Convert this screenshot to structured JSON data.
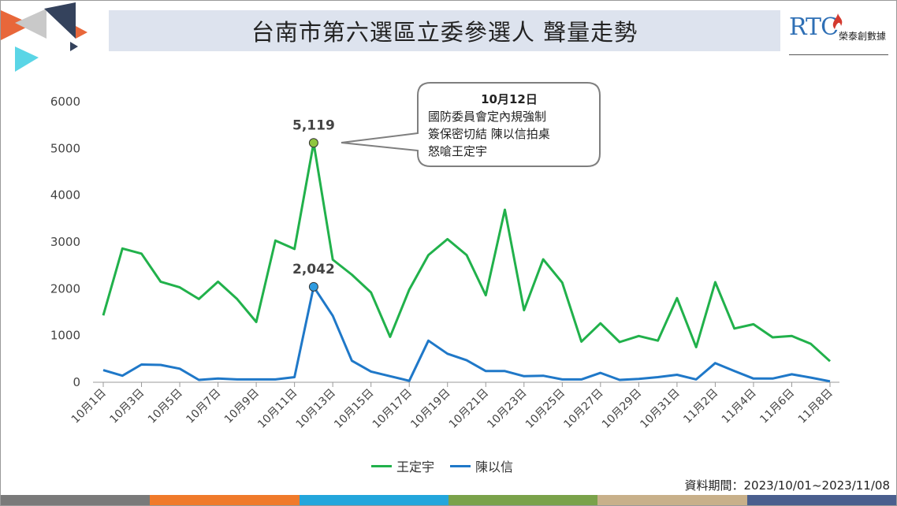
{
  "title": "台南市第六選區立委參選人 聲量走勢",
  "logo": {
    "mark": "RTC",
    "name": "榮泰創數據"
  },
  "date_range": "資料期間：2023/10/01~2023/11/08",
  "colors": {
    "series_green": "#21b14b",
    "series_blue": "#1f78c8",
    "bottom_bar": [
      "#7a7a7a",
      "#f07a2a",
      "#23a6dc",
      "#7aa24a",
      "#c8b08a",
      "#4a5f8e"
    ],
    "corner_orange": "#e8673a",
    "corner_navy": "#34425c",
    "corner_gray": "#c9c9c9",
    "corner_cyan": "#5ad5e6"
  },
  "chart_data": {
    "type": "line",
    "x": [
      "10月1日",
      "10月2日",
      "10月3日",
      "10月4日",
      "10月5日",
      "10月6日",
      "10月7日",
      "10月8日",
      "10月9日",
      "10月10日",
      "10月11日",
      "10月12日",
      "10月13日",
      "10月14日",
      "10月15日",
      "10月16日",
      "10月17日",
      "10月18日",
      "10月19日",
      "10月20日",
      "10月21日",
      "10月22日",
      "10月23日",
      "10月24日",
      "10月25日",
      "10月26日",
      "10月27日",
      "10月28日",
      "10月29日",
      "10月30日",
      "10月31日",
      "11月1日",
      "11月2日",
      "11月3日",
      "11月4日",
      "11月5日",
      "11月6日",
      "11月7日",
      "11月8日"
    ],
    "tick_labels": [
      "10月1日",
      "10月3日",
      "10月5日",
      "10月7日",
      "10月9日",
      "10月11日",
      "10月13日",
      "10月15日",
      "10月17日",
      "10月19日",
      "10月21日",
      "10月23日",
      "10月25日",
      "10月27日",
      "10月29日",
      "10月31日",
      "11月2日",
      "11月4日",
      "11月6日",
      "11月8日"
    ],
    "series": [
      {
        "name": "王定宇",
        "color": "#21b14b",
        "values": [
          1430,
          2860,
          2750,
          2150,
          2030,
          1780,
          2150,
          1780,
          1290,
          3030,
          2850,
          5119,
          2620,
          2300,
          1920,
          970,
          1980,
          2720,
          3060,
          2720,
          1860,
          3690,
          1540,
          2630,
          2130,
          870,
          1260,
          860,
          990,
          890,
          1800,
          750,
          2140,
          1150,
          1240,
          960,
          990,
          820,
          450
        ]
      },
      {
        "name": "陳以信",
        "color": "#1f78c8",
        "values": [
          260,
          140,
          380,
          370,
          290,
          50,
          80,
          60,
          60,
          60,
          110,
          2042,
          1420,
          460,
          230,
          130,
          30,
          890,
          610,
          470,
          240,
          240,
          130,
          140,
          60,
          60,
          200,
          50,
          70,
          110,
          160,
          60,
          410,
          240,
          80,
          80,
          170,
          100,
          20
        ]
      }
    ],
    "yticks": [
      0,
      1000,
      2000,
      3000,
      4000,
      5000,
      6000
    ],
    "ylim": [
      0,
      6000
    ],
    "grid": false,
    "data_labels": [
      {
        "series": 0,
        "index": 11,
        "text": "5,119"
      },
      {
        "series": 1,
        "index": 11,
        "text": "2,042"
      }
    ],
    "annotation": {
      "title": "10月12日",
      "lines": [
        "國防委員會定內規強制",
        "簽保密切結 陳以信拍桌",
        "怒嗆王定宇"
      ]
    },
    "legend_position": "bottom"
  }
}
